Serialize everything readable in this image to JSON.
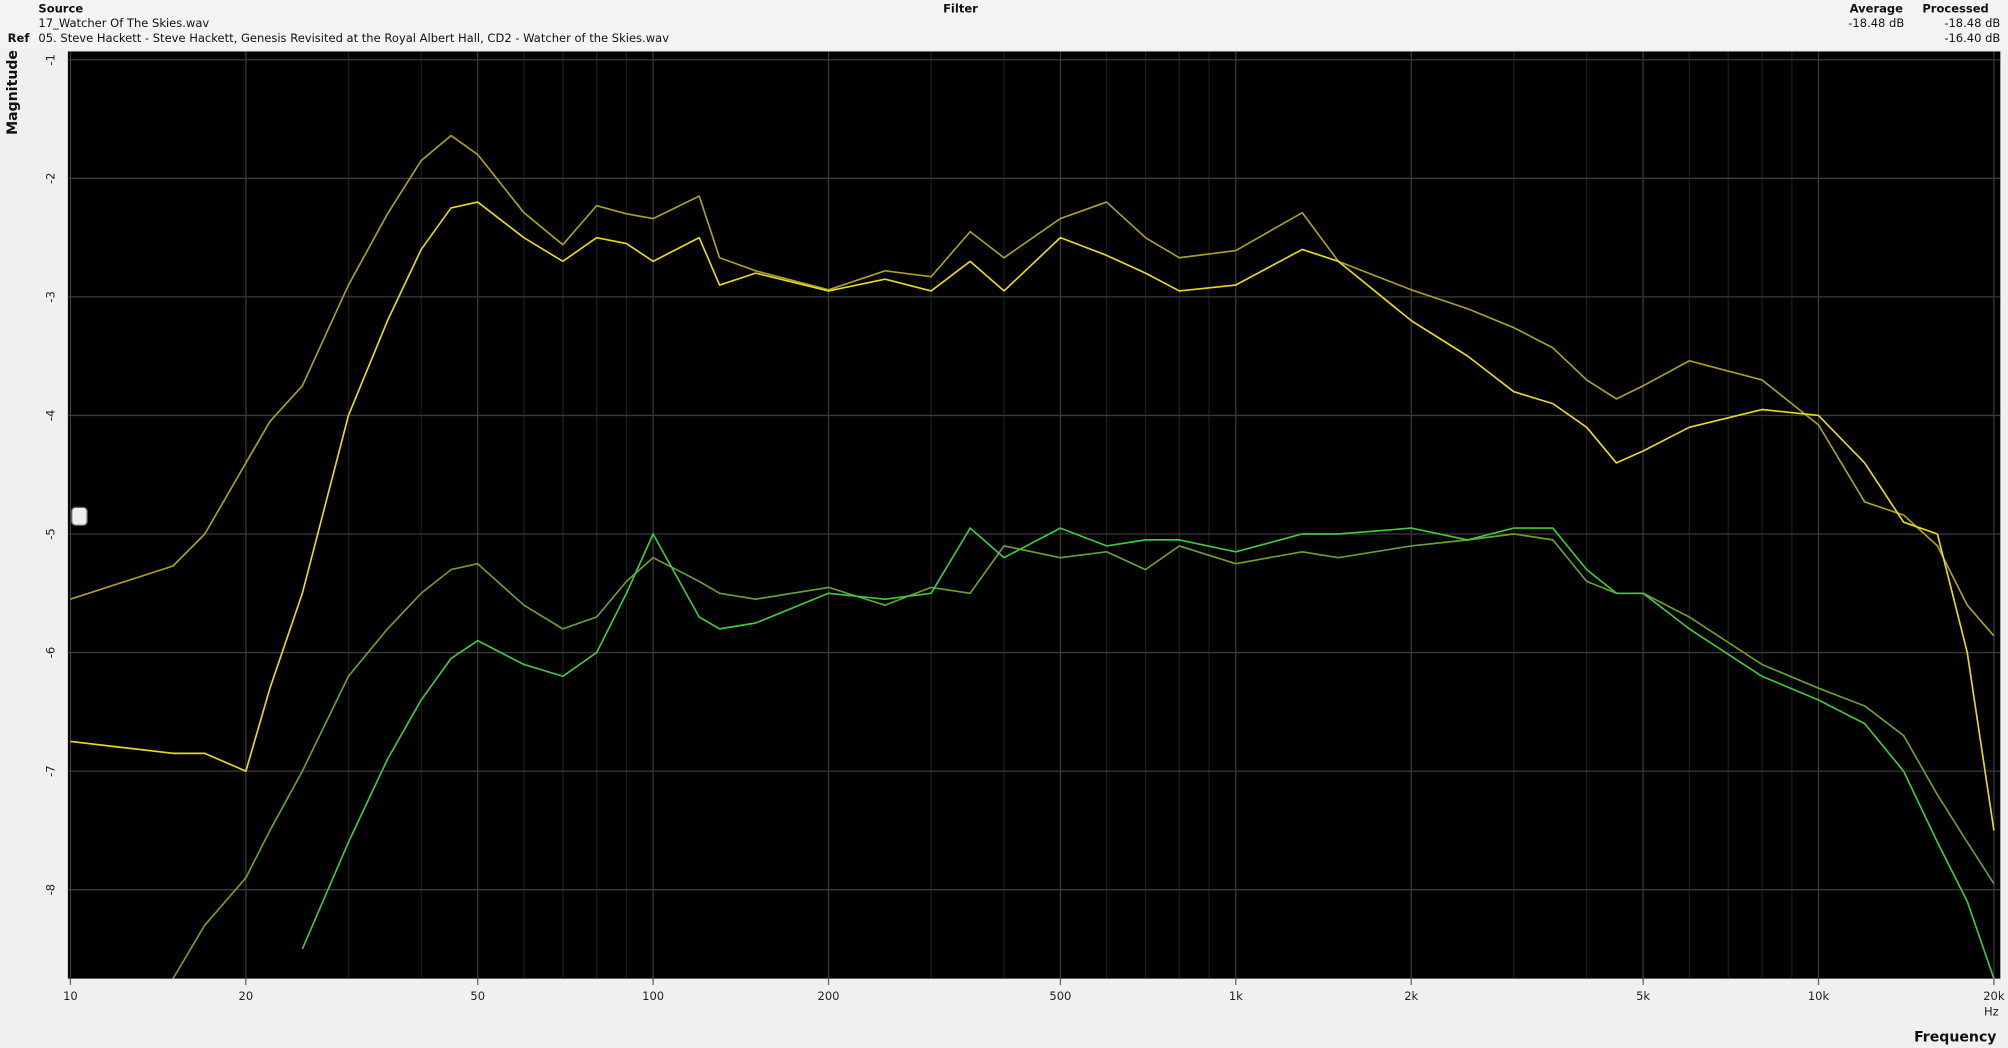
{
  "header": {
    "source_label": "Source",
    "source_file": "17_Watcher Of The Skies.wav",
    "ref_label": "Ref",
    "ref_file": "05. Steve Hackett - Steve Hackett, Genesis Revisited at the Royal Albert Hall, CD2 - Watcher of the Skies.wav",
    "filter_label": "Filter",
    "average_label": "Average",
    "average_source": "-18.48 dB",
    "processed_label": "Processed",
    "processed_source": "-18.48 dB",
    "processed_ref": "-16.40 dB"
  },
  "chart_data": {
    "type": "line",
    "ylabel": "Magnitude",
    "xlabel": "Frequency",
    "x_unit": "Hz",
    "xscale": "log",
    "grid": true,
    "xlim": [
      10,
      20000
    ],
    "ylim": [
      -8.75,
      -0.93
    ],
    "xticks": [
      10,
      20,
      50,
      100,
      200,
      500,
      {
        "value": 1000,
        "label": "1k"
      },
      {
        "value": 2000,
        "label": "2k"
      },
      {
        "value": 5000,
        "label": "5k"
      },
      {
        "value": 10000,
        "label": "10k"
      },
      {
        "value": 20000,
        "label": "20k"
      }
    ],
    "minor_xticks": [
      30,
      40,
      60,
      70,
      80,
      90,
      300,
      400,
      600,
      700,
      800,
      900,
      3000,
      4000,
      6000,
      7000,
      8000,
      9000
    ],
    "yticks": [
      -1,
      -2,
      -3,
      -4,
      -5,
      -6,
      -7,
      -8
    ],
    "x": [
      10,
      15,
      17,
      20,
      22,
      25,
      30,
      35,
      40,
      45,
      50,
      60,
      70,
      80,
      90,
      100,
      120,
      130,
      150,
      200,
      250,
      300,
      350,
      400,
      500,
      600,
      700,
      800,
      1000,
      1300,
      1500,
      2000,
      2500,
      3000,
      3500,
      4000,
      4500,
      5000,
      6000,
      8000,
      10000,
      12000,
      14000,
      16000,
      18000,
      20000
    ],
    "series": [
      {
        "color": "#a8a020",
        "values": [
          -5.55,
          -5.27,
          -5.0,
          -4.4,
          -4.05,
          -3.75,
          -2.9,
          -2.3,
          -1.85,
          -1.64,
          -1.8,
          -2.29,
          -2.56,
          -2.23,
          -2.3,
          -2.34,
          -2.15,
          -2.67,
          -2.78,
          -2.94,
          -2.78,
          -2.83,
          -2.45,
          -2.67,
          -2.34,
          -2.2,
          -2.5,
          -2.67,
          -2.61,
          -2.29,
          -2.7,
          -2.94,
          -3.1,
          -3.26,
          -3.43,
          -3.7,
          -3.86,
          -3.75,
          -3.54,
          -3.7,
          -4.08,
          -4.73,
          -4.84,
          -5.1,
          -5.6,
          -5.86
        ]
      },
      {
        "color": "#e8d820",
        "values": [
          -6.75,
          -6.85,
          -6.85,
          -7.0,
          -6.3,
          -5.5,
          -4.0,
          -3.2,
          -2.6,
          -2.25,
          -2.2,
          -2.5,
          -2.7,
          -2.5,
          -2.55,
          -2.7,
          -2.5,
          -2.9,
          -2.8,
          -2.95,
          -2.85,
          -2.95,
          -2.7,
          -2.95,
          -2.5,
          -2.65,
          -2.8,
          -2.95,
          -2.9,
          -2.6,
          -2.7,
          -3.2,
          -3.5,
          -3.8,
          -3.9,
          -4.1,
          -4.4,
          -4.3,
          -4.1,
          -3.95,
          -4.0,
          -4.4,
          -4.9,
          -5.0,
          -6.0,
          -7.5
        ]
      },
      {
        "color": "#6aa030",
        "values": [
          null,
          -8.75,
          -8.3,
          -7.9,
          -7.5,
          -7.0,
          -6.2,
          -5.8,
          -5.5,
          -5.3,
          -5.25,
          -5.6,
          -5.8,
          -5.7,
          -5.4,
          -5.2,
          -5.4,
          -5.5,
          -5.55,
          -5.45,
          -5.6,
          -5.45,
          -5.5,
          -5.1,
          -5.2,
          -5.15,
          -5.3,
          -5.1,
          -5.25,
          -5.15,
          -5.2,
          -5.1,
          -5.05,
          -5.0,
          -5.05,
          -5.4,
          -5.5,
          -5.5,
          -5.7,
          -6.1,
          -6.3,
          -6.45,
          -6.7,
          -7.2,
          -7.6,
          -7.95
        ]
      },
      {
        "color": "#40c840",
        "values": [
          null,
          null,
          null,
          null,
          null,
          -8.5,
          -7.6,
          -6.9,
          -6.4,
          -6.05,
          -5.9,
          -6.1,
          -6.2,
          -6.0,
          -5.5,
          -5.0,
          -5.7,
          -5.8,
          -5.75,
          -5.5,
          -5.55,
          -5.5,
          -4.95,
          -5.2,
          -4.95,
          -5.1,
          -5.05,
          -5.05,
          -5.15,
          -5.0,
          -5.0,
          -4.95,
          -5.05,
          -4.95,
          -4.95,
          -5.3,
          -5.5,
          -5.5,
          -5.8,
          -6.2,
          -6.4,
          -6.6,
          -7.0,
          -7.6,
          -8.1,
          -8.75
        ]
      }
    ]
  }
}
